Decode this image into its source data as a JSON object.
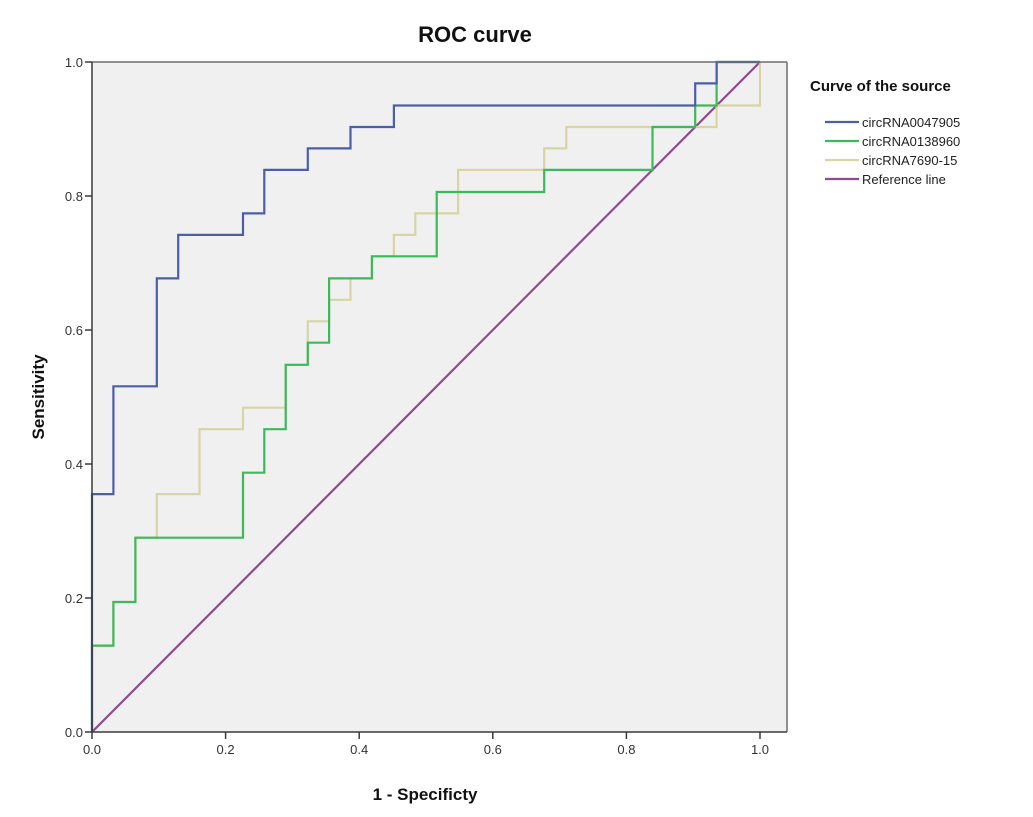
{
  "chart_data": {
    "type": "line",
    "title": "ROC curve",
    "xlabel": "1 - Specificty",
    "ylabel": "Sensitivity",
    "xlim": [
      0,
      1
    ],
    "ylim": [
      0,
      1
    ],
    "x_ticks": [
      "0.0",
      "0.2",
      "0.4",
      "0.6",
      "0.8",
      "1.0"
    ],
    "y_ticks": [
      "0.0",
      "0.2",
      "0.4",
      "0.6",
      "0.8",
      "1.0"
    ],
    "grid": false,
    "background": "#f0f0f0",
    "legend": {
      "title": "Curve of the source",
      "position": "right"
    },
    "series": [
      {
        "name": "circRNA0047905",
        "color": "#4a5fa8",
        "step": true,
        "points": [
          [
            0,
            0
          ],
          [
            0,
            0.355
          ],
          [
            0.032,
            0.355
          ],
          [
            0.032,
            0.516
          ],
          [
            0.097,
            0.516
          ],
          [
            0.097,
            0.677
          ],
          [
            0.129,
            0.677
          ],
          [
            0.129,
            0.742
          ],
          [
            0.226,
            0.742
          ],
          [
            0.226,
            0.774
          ],
          [
            0.258,
            0.774
          ],
          [
            0.258,
            0.839
          ],
          [
            0.323,
            0.839
          ],
          [
            0.323,
            0.871
          ],
          [
            0.387,
            0.871
          ],
          [
            0.387,
            0.903
          ],
          [
            0.452,
            0.903
          ],
          [
            0.452,
            0.935
          ],
          [
            0.903,
            0.935
          ],
          [
            0.903,
            0.968
          ],
          [
            0.935,
            0.968
          ],
          [
            0.935,
            1.0
          ],
          [
            1.0,
            1.0
          ]
        ]
      },
      {
        "name": "circRNA0138960",
        "color": "#3cb95a",
        "step": true,
        "points": [
          [
            0,
            0
          ],
          [
            0,
            0.129
          ],
          [
            0.032,
            0.129
          ],
          [
            0.032,
            0.194
          ],
          [
            0.065,
            0.194
          ],
          [
            0.065,
            0.29
          ],
          [
            0.226,
            0.29
          ],
          [
            0.226,
            0.387
          ],
          [
            0.258,
            0.387
          ],
          [
            0.258,
            0.452
          ],
          [
            0.29,
            0.452
          ],
          [
            0.29,
            0.548
          ],
          [
            0.323,
            0.548
          ],
          [
            0.323,
            0.581
          ],
          [
            0.355,
            0.581
          ],
          [
            0.355,
            0.677
          ],
          [
            0.419,
            0.677
          ],
          [
            0.419,
            0.71
          ],
          [
            0.516,
            0.71
          ],
          [
            0.516,
            0.806
          ],
          [
            0.677,
            0.806
          ],
          [
            0.677,
            0.839
          ],
          [
            0.839,
            0.839
          ],
          [
            0.839,
            0.903
          ],
          [
            0.903,
            0.903
          ],
          [
            0.903,
            0.935
          ],
          [
            0.935,
            0.935
          ],
          [
            0.935,
            1.0
          ],
          [
            1.0,
            1.0
          ]
        ]
      },
      {
        "name": "circRNA7690-15",
        "color": "#d8d4a6",
        "step": true,
        "points": [
          [
            0,
            0
          ],
          [
            0,
            0.129
          ],
          [
            0.032,
            0.129
          ],
          [
            0.032,
            0.194
          ],
          [
            0.065,
            0.194
          ],
          [
            0.065,
            0.29
          ],
          [
            0.097,
            0.29
          ],
          [
            0.097,
            0.355
          ],
          [
            0.161,
            0.355
          ],
          [
            0.161,
            0.452
          ],
          [
            0.226,
            0.452
          ],
          [
            0.226,
            0.484
          ],
          [
            0.29,
            0.484
          ],
          [
            0.29,
            0.548
          ],
          [
            0.323,
            0.548
          ],
          [
            0.323,
            0.613
          ],
          [
            0.355,
            0.613
          ],
          [
            0.355,
            0.645
          ],
          [
            0.387,
            0.645
          ],
          [
            0.387,
            0.677
          ],
          [
            0.419,
            0.677
          ],
          [
            0.419,
            0.71
          ],
          [
            0.452,
            0.71
          ],
          [
            0.452,
            0.742
          ],
          [
            0.484,
            0.742
          ],
          [
            0.484,
            0.774
          ],
          [
            0.548,
            0.774
          ],
          [
            0.548,
            0.839
          ],
          [
            0.677,
            0.839
          ],
          [
            0.677,
            0.871
          ],
          [
            0.71,
            0.871
          ],
          [
            0.71,
            0.903
          ],
          [
            0.935,
            0.903
          ],
          [
            0.935,
            0.935
          ],
          [
            1.0,
            0.935
          ],
          [
            1.0,
            1.0
          ]
        ]
      },
      {
        "name": "Reference line",
        "color": "#8e4a8e",
        "step": false,
        "points": [
          [
            0,
            0
          ],
          [
            1,
            1
          ]
        ]
      }
    ]
  }
}
